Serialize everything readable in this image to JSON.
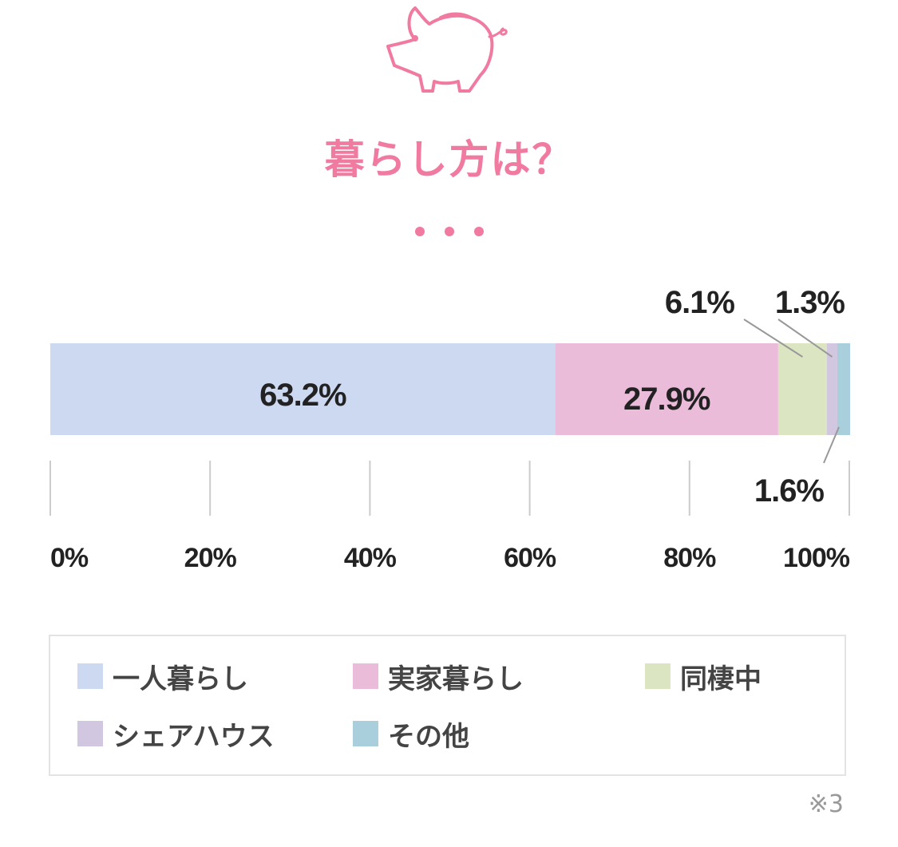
{
  "title": "暮らし方は？",
  "footnote": "※3",
  "colors": {
    "accent": "#f07aa0",
    "text": "#222222",
    "axis": "#cccccc"
  },
  "icons": {
    "header": "piggy-bank-icon",
    "divider": "dots-icon"
  },
  "legend": [
    {
      "label": "一人暮らし",
      "color": "#cdd9f0"
    },
    {
      "label": "実家暮らし",
      "color": "#ebbcda"
    },
    {
      "label": "同棲中",
      "color": "#dce5c2"
    },
    {
      "label": "シェアハウス",
      "color": "#d2c7e0"
    },
    {
      "label": "その他",
      "color": "#a9cedc"
    }
  ],
  "chart_data": {
    "type": "bar",
    "orientation": "horizontal-stacked",
    "categories": [
      "一人暮らし",
      "実家暮らし",
      "同棲中",
      "シェアハウス",
      "その他"
    ],
    "values": [
      63.2,
      27.9,
      6.1,
      1.3,
      1.6
    ],
    "value_labels": [
      "63.2%",
      "27.9%",
      "6.1%",
      "1.3%",
      "1.6%"
    ],
    "xlim": [
      0,
      100
    ],
    "xticks": [
      "0%",
      "20%",
      "40%",
      "60%",
      "80%",
      "100%"
    ],
    "legend_position": "bottom"
  }
}
